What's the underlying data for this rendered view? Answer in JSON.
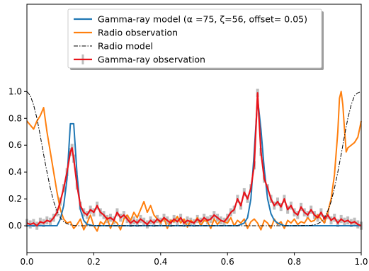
{
  "chart_data": {
    "type": "line",
    "title": "",
    "xlabel": "",
    "ylabel": "",
    "xlim": [
      0.0,
      1.0
    ],
    "ylim": [
      -0.2,
      1.65
    ],
    "x_ticks": [
      0.0,
      0.2,
      0.4,
      0.6,
      0.8,
      1.0
    ],
    "x_tick_labels": [
      "0.0",
      "0.2",
      "0.4",
      "0.6",
      "0.8",
      "1.0"
    ],
    "y_ticks": [
      0.0,
      0.2,
      0.4,
      0.6,
      0.8,
      1.0
    ],
    "y_tick_labels": [
      "0.0",
      "0.2",
      "0.4",
      "0.6",
      "0.8",
      "1.0"
    ],
    "grid": false,
    "legend_position": "top-center",
    "series": [
      {
        "name": "Gamma-ray model (α =75, ζ=56, offset= 0.05)",
        "color": "#1f77b4",
        "style": "solid",
        "x": [
          0.0,
          0.09,
          0.1,
          0.11,
          0.12,
          0.13,
          0.14,
          0.15,
          0.16,
          0.17,
          0.18,
          0.2,
          0.25,
          0.3,
          0.4,
          0.5,
          0.6,
          0.63,
          0.65,
          0.66,
          0.67,
          0.68,
          0.69,
          0.7,
          0.71,
          0.72,
          0.73,
          0.74,
          0.75,
          0.77,
          0.8,
          0.9,
          1.0
        ],
        "y": [
          0.0,
          0.0,
          0.05,
          0.15,
          0.35,
          0.76,
          0.76,
          0.38,
          0.12,
          0.04,
          0.01,
          0.0,
          0.0,
          0.0,
          0.0,
          0.0,
          0.0,
          0.0,
          0.02,
          0.06,
          0.2,
          0.55,
          0.95,
          0.72,
          0.42,
          0.2,
          0.09,
          0.04,
          0.02,
          0.0,
          0.0,
          0.0,
          0.0
        ]
      },
      {
        "name": "Radio observation",
        "color": "#ff7f0e",
        "style": "solid",
        "x": [
          0.0,
          0.01,
          0.02,
          0.03,
          0.04,
          0.05,
          0.06,
          0.07,
          0.08,
          0.09,
          0.1,
          0.11,
          0.12,
          0.13,
          0.14,
          0.15,
          0.16,
          0.17,
          0.18,
          0.19,
          0.2,
          0.21,
          0.22,
          0.23,
          0.24,
          0.25,
          0.26,
          0.27,
          0.28,
          0.29,
          0.3,
          0.31,
          0.32,
          0.33,
          0.34,
          0.35,
          0.36,
          0.37,
          0.38,
          0.39,
          0.4,
          0.41,
          0.42,
          0.43,
          0.44,
          0.45,
          0.46,
          0.47,
          0.48,
          0.49,
          0.5,
          0.51,
          0.52,
          0.53,
          0.54,
          0.55,
          0.56,
          0.57,
          0.58,
          0.59,
          0.6,
          0.61,
          0.62,
          0.63,
          0.64,
          0.65,
          0.66,
          0.67,
          0.68,
          0.69,
          0.7,
          0.71,
          0.72,
          0.73,
          0.74,
          0.75,
          0.76,
          0.77,
          0.78,
          0.79,
          0.8,
          0.81,
          0.82,
          0.83,
          0.84,
          0.85,
          0.86,
          0.87,
          0.88,
          0.89,
          0.9,
          0.91,
          0.92,
          0.93,
          0.935,
          0.94,
          0.945,
          0.95,
          0.955,
          0.96,
          0.97,
          0.98,
          0.99,
          1.0
        ],
        "y": [
          0.78,
          0.75,
          0.72,
          0.78,
          0.82,
          0.88,
          0.7,
          0.55,
          0.4,
          0.25,
          0.12,
          0.05,
          0.02,
          0.03,
          -0.02,
          0.01,
          0.05,
          -0.03,
          0.02,
          0.08,
          0.0,
          -0.04,
          0.03,
          0.01,
          0.06,
          -0.02,
          0.04,
          0.02,
          -0.03,
          0.05,
          0.08,
          0.04,
          0.1,
          0.06,
          0.12,
          0.18,
          0.1,
          0.15,
          0.08,
          0.05,
          0.02,
          0.06,
          -0.02,
          0.04,
          0.03,
          0.07,
          0.02,
          0.05,
          -0.01,
          0.04,
          0.02,
          0.06,
          0.0,
          0.04,
          0.03,
          -0.02,
          0.05,
          0.01,
          0.04,
          0.03,
          0.02,
          0.06,
          0.0,
          0.04,
          0.02,
          0.05,
          -0.02,
          0.03,
          0.05,
          0.02,
          -0.03,
          0.04,
          0.02,
          -0.02,
          0.05,
          0.01,
          0.03,
          -0.02,
          0.04,
          0.02,
          0.05,
          0.01,
          0.03,
          0.02,
          0.06,
          0.03,
          0.04,
          0.08,
          0.05,
          0.02,
          0.1,
          0.2,
          0.38,
          0.7,
          0.95,
          1.0,
          0.9,
          0.72,
          0.55,
          0.58,
          0.6,
          0.62,
          0.66,
          0.78
        ]
      },
      {
        "name": "Radio model",
        "color": "#000000",
        "style": "dashdot",
        "x": [
          0.0,
          0.01,
          0.02,
          0.03,
          0.04,
          0.05,
          0.06,
          0.07,
          0.08,
          0.09,
          0.1,
          0.11,
          0.12,
          0.13,
          0.14,
          0.15,
          0.2,
          0.5,
          0.8,
          0.85,
          0.86,
          0.87,
          0.88,
          0.89,
          0.9,
          0.91,
          0.92,
          0.93,
          0.94,
          0.95,
          0.96,
          0.97,
          0.98,
          0.99,
          1.0
        ],
        "y": [
          1.0,
          0.97,
          0.9,
          0.8,
          0.67,
          0.53,
          0.4,
          0.28,
          0.18,
          0.11,
          0.06,
          0.03,
          0.015,
          0.007,
          0.003,
          0.0,
          0.0,
          0.0,
          0.0,
          0.003,
          0.007,
          0.015,
          0.03,
          0.06,
          0.11,
          0.18,
          0.28,
          0.4,
          0.53,
          0.67,
          0.8,
          0.9,
          0.97,
          0.99,
          1.0
        ]
      },
      {
        "name": "Gamma-ray observation",
        "color": "#e8141b",
        "style": "solid",
        "x": [
          0.0,
          0.01,
          0.02,
          0.03,
          0.04,
          0.05,
          0.06,
          0.07,
          0.08,
          0.09,
          0.1,
          0.11,
          0.12,
          0.13,
          0.135,
          0.14,
          0.15,
          0.16,
          0.17,
          0.18,
          0.19,
          0.2,
          0.21,
          0.22,
          0.23,
          0.24,
          0.25,
          0.26,
          0.27,
          0.28,
          0.29,
          0.3,
          0.31,
          0.32,
          0.33,
          0.34,
          0.35,
          0.36,
          0.37,
          0.38,
          0.39,
          0.4,
          0.41,
          0.42,
          0.43,
          0.44,
          0.45,
          0.46,
          0.47,
          0.48,
          0.49,
          0.5,
          0.51,
          0.52,
          0.53,
          0.54,
          0.55,
          0.56,
          0.57,
          0.58,
          0.59,
          0.6,
          0.61,
          0.62,
          0.63,
          0.64,
          0.65,
          0.66,
          0.67,
          0.68,
          0.69,
          0.7,
          0.71,
          0.72,
          0.73,
          0.74,
          0.75,
          0.76,
          0.77,
          0.78,
          0.79,
          0.8,
          0.81,
          0.82,
          0.83,
          0.84,
          0.85,
          0.86,
          0.87,
          0.88,
          0.89,
          0.9,
          0.91,
          0.92,
          0.93,
          0.94,
          0.95,
          0.96,
          0.97,
          0.98,
          0.99,
          1.0
        ],
        "y": [
          0.02,
          0.01,
          0.02,
          0.0,
          0.03,
          0.02,
          0.04,
          0.03,
          0.06,
          0.1,
          0.18,
          0.28,
          0.4,
          0.55,
          0.58,
          0.5,
          0.3,
          0.15,
          0.1,
          0.08,
          0.12,
          0.1,
          0.15,
          0.1,
          0.08,
          0.05,
          0.06,
          0.04,
          0.1,
          0.06,
          0.08,
          0.05,
          0.02,
          0.04,
          0.02,
          0.05,
          0.03,
          0.01,
          0.04,
          0.02,
          0.05,
          0.03,
          0.06,
          0.04,
          0.02,
          0.05,
          0.03,
          0.06,
          0.02,
          0.04,
          0.03,
          0.02,
          0.05,
          0.03,
          0.06,
          0.04,
          0.05,
          0.08,
          0.06,
          0.04,
          0.03,
          0.06,
          0.1,
          0.12,
          0.2,
          0.15,
          0.25,
          0.2,
          0.28,
          0.45,
          0.99,
          0.55,
          0.35,
          0.28,
          0.2,
          0.15,
          0.18,
          0.14,
          0.2,
          0.12,
          0.15,
          0.1,
          0.08,
          0.14,
          0.1,
          0.08,
          0.12,
          0.08,
          0.06,
          0.1,
          0.05,
          0.08,
          0.04,
          0.06,
          0.02,
          0.05,
          0.03,
          0.04,
          0.02,
          0.03,
          0.01,
          0.0
        ]
      }
    ]
  }
}
